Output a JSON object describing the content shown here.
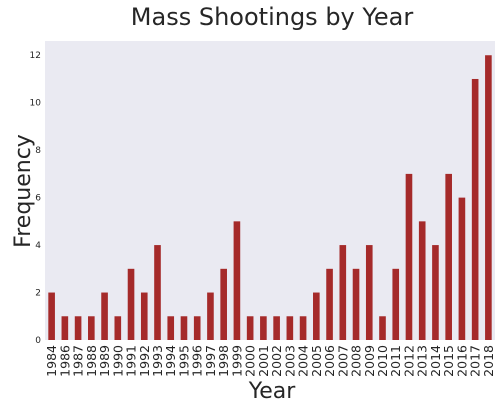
{
  "chart_data": {
    "type": "bar",
    "title": "Mass Shootings by Year",
    "xlabel": "Year",
    "ylabel": "Frequency",
    "categories": [
      "1984",
      "1986",
      "1987",
      "1988",
      "1989",
      "1990",
      "1991",
      "1992",
      "1993",
      "1994",
      "1995",
      "1996",
      "1997",
      "1998",
      "1999",
      "2000",
      "2001",
      "2002",
      "2003",
      "2004",
      "2005",
      "2006",
      "2007",
      "2008",
      "2009",
      "2010",
      "2011",
      "2012",
      "2013",
      "2014",
      "2015",
      "2016",
      "2017",
      "2018"
    ],
    "values": [
      2,
      1,
      1,
      1,
      2,
      1,
      3,
      2,
      4,
      1,
      1,
      1,
      2,
      3,
      5,
      1,
      1,
      1,
      1,
      1,
      2,
      3,
      4,
      3,
      4,
      1,
      3,
      7,
      5,
      4,
      7,
      6,
      11,
      12
    ],
    "yticks": [
      0,
      2,
      4,
      6,
      8,
      10,
      12
    ],
    "ylim": [
      0,
      12.6
    ],
    "grid": false,
    "colors": {
      "bar": "#a52a2a",
      "plot_background": "#eaeaf2"
    }
  }
}
